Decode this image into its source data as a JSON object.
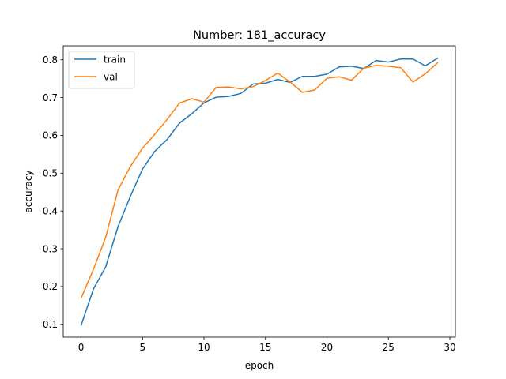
{
  "chart_data": {
    "type": "line",
    "title": "Number: 181_accuracy",
    "xlabel": "epoch",
    "ylabel": "accuracy",
    "xlim": [
      -1.45,
      30.45
    ],
    "ylim": [
      0.066,
      0.837
    ],
    "xticks": [
      0,
      5,
      10,
      15,
      20,
      25,
      30
    ],
    "yticks": [
      0.1,
      0.2,
      0.3,
      0.4,
      0.5,
      0.6,
      0.7,
      0.8
    ],
    "grid": false,
    "legend_position": "upper-left",
    "x": [
      0,
      1,
      2,
      3,
      4,
      5,
      6,
      7,
      8,
      9,
      10,
      11,
      12,
      13,
      14,
      15,
      16,
      17,
      18,
      19,
      20,
      21,
      22,
      23,
      24,
      25,
      26,
      27,
      28,
      29
    ],
    "series": [
      {
        "name": "train",
        "color": "#1f77b4",
        "values": [
          0.097,
          0.193,
          0.252,
          0.358,
          0.438,
          0.511,
          0.558,
          0.589,
          0.632,
          0.657,
          0.686,
          0.701,
          0.703,
          0.711,
          0.736,
          0.738,
          0.748,
          0.74,
          0.756,
          0.756,
          0.762,
          0.781,
          0.783,
          0.777,
          0.798,
          0.794,
          0.802,
          0.802,
          0.784,
          0.804
        ]
      },
      {
        "name": "val",
        "color": "#ff7f0e",
        "values": [
          0.169,
          0.245,
          0.33,
          0.455,
          0.517,
          0.566,
          0.603,
          0.642,
          0.685,
          0.697,
          0.688,
          0.727,
          0.728,
          0.723,
          0.729,
          0.745,
          0.765,
          0.741,
          0.714,
          0.72,
          0.751,
          0.755,
          0.746,
          0.778,
          0.785,
          0.783,
          0.779,
          0.741,
          0.763,
          0.792
        ]
      }
    ]
  }
}
